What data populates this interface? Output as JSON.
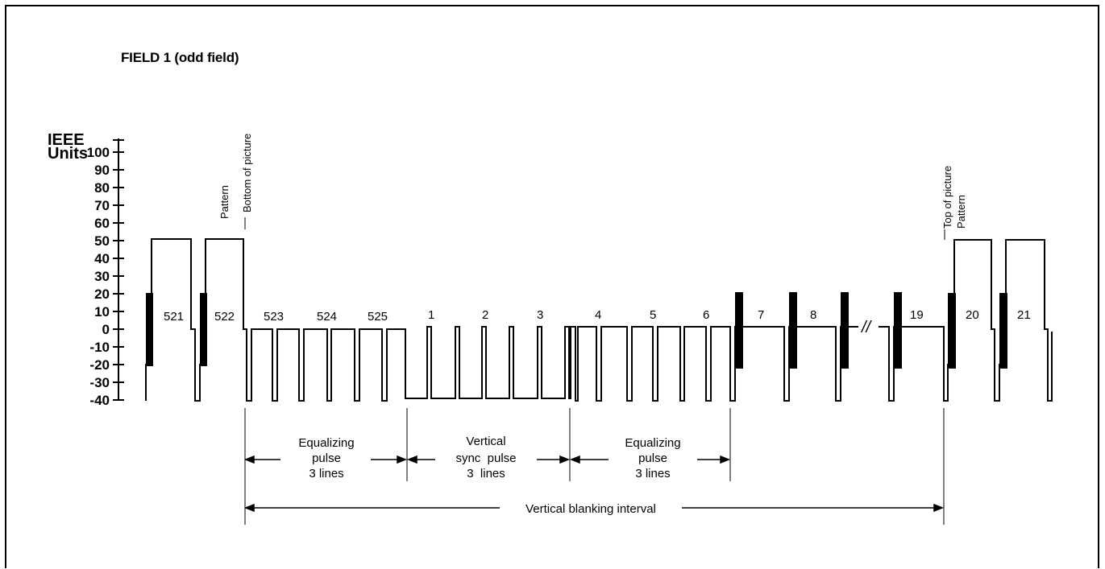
{
  "title": "FIELD 1 (odd field)",
  "y_axis": {
    "label_lines": [
      "IEEE",
      "Units"
    ],
    "ticks": [
      "100",
      "90",
      "80",
      "70",
      "60",
      "50",
      "40",
      "30",
      "20",
      "10",
      "0",
      "-10",
      "-20",
      "-30",
      "-40"
    ]
  },
  "line_numbers": [
    "521",
    "522",
    "523",
    "524",
    "525",
    "1",
    "2",
    "3",
    "4",
    "5",
    "6",
    "7",
    "8",
    "19",
    "20",
    "21"
  ],
  "markers": {
    "pattern_left": "Pattern",
    "bottom_of_picture": "Bottom of picture",
    "top_of_picture": "Top of picture",
    "pattern_right": "Pattern"
  },
  "intervals": {
    "equalizing_1": [
      "Equalizing",
      "pulse",
      "3 lines"
    ],
    "vertical_sync": [
      "Vertical",
      "sync  pulse",
      "3  lines"
    ],
    "equalizing_2": [
      "Equalizing",
      "pulse",
      "3 lines"
    ],
    "blanking": "Vertical blanking interval"
  },
  "break_symbol": "//",
  "colors": {
    "ink": "#000000",
    "background": "#ffffff"
  }
}
